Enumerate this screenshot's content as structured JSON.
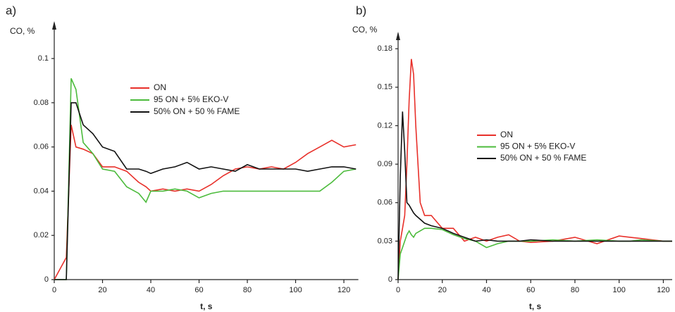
{
  "chart_data": [
    {
      "type": "line",
      "panel_label": "a)",
      "ylabel": "CO, %",
      "xlabel": "t, s",
      "x": [
        0,
        5,
        7,
        9,
        12,
        16,
        20,
        25,
        30,
        35,
        38,
        40,
        45,
        50,
        55,
        60,
        65,
        70,
        75,
        80,
        85,
        90,
        95,
        100,
        105,
        110,
        115,
        120,
        125
      ],
      "series": [
        {
          "name": "ON",
          "color": "#e8302a",
          "values": [
            0,
            0.01,
            0.07,
            0.06,
            0.059,
            0.057,
            0.051,
            0.051,
            0.049,
            0.044,
            0.042,
            0.04,
            0.041,
            0.04,
            0.041,
            0.04,
            0.043,
            0.047,
            0.05,
            0.051,
            0.05,
            0.051,
            0.05,
            0.053,
            0.057,
            0.06,
            0.063,
            0.06,
            0.061
          ]
        },
        {
          "name": "95 ON + 5% EKO-V",
          "color": "#4cbb3c",
          "values": [
            0,
            0,
            0.091,
            0.086,
            0.062,
            0.057,
            0.05,
            0.049,
            0.042,
            0.039,
            0.035,
            0.04,
            0.04,
            0.041,
            0.04,
            0.037,
            0.039,
            0.04,
            0.04,
            0.04,
            0.04,
            0.04,
            0.04,
            0.04,
            0.04,
            0.04,
            0.044,
            0.049,
            0.05
          ]
        },
        {
          "name": "50% ON + 50 % FAME",
          "color": "#111111",
          "values": [
            0,
            0,
            0.08,
            0.08,
            0.07,
            0.066,
            0.06,
            0.058,
            0.05,
            0.05,
            0.049,
            0.048,
            0.05,
            0.051,
            0.053,
            0.05,
            0.051,
            0.05,
            0.049,
            0.052,
            0.05,
            0.05,
            0.05,
            0.05,
            0.049,
            0.05,
            0.051,
            0.051,
            0.05
          ]
        }
      ],
      "xlim": [
        0,
        126
      ],
      "xticks": [
        0,
        20,
        40,
        60,
        80,
        100,
        120
      ],
      "ylim": [
        0,
        0.115
      ],
      "yticks": [
        0,
        0.02,
        0.04,
        0.06,
        0.08,
        0.1
      ]
    },
    {
      "type": "line",
      "panel_label": "b)",
      "ylabel": "CO, %",
      "xlabel": "t, s",
      "x": [
        0,
        1,
        2,
        3,
        4,
        5,
        6,
        7,
        8,
        10,
        12,
        15,
        20,
        25,
        30,
        35,
        40,
        45,
        50,
        55,
        60,
        70,
        80,
        90,
        100,
        105,
        110,
        120,
        124
      ],
      "series": [
        {
          "name": "ON",
          "color": "#e8302a",
          "values": [
            0,
            0.03,
            0.04,
            0.05,
            0.09,
            0.14,
            0.172,
            0.16,
            0.12,
            0.06,
            0.05,
            0.05,
            0.04,
            0.04,
            0.03,
            0.033,
            0.03,
            0.033,
            0.035,
            0.03,
            0.029,
            0.03,
            0.033,
            0.028,
            0.034,
            0.033,
            0.032,
            0.03,
            0.03
          ]
        },
        {
          "name": "95 ON + 5% EKO-V",
          "color": "#4cbb3c",
          "values": [
            0,
            0.02,
            0.025,
            0.03,
            0.035,
            0.038,
            0.035,
            0.033,
            0.036,
            0.038,
            0.04,
            0.04,
            0.039,
            0.035,
            0.032,
            0.03,
            0.025,
            0.028,
            0.03,
            0.03,
            0.03,
            0.031,
            0.03,
            0.031,
            0.03,
            0.03,
            0.031,
            0.03,
            0.03
          ]
        },
        {
          "name": "50% ON + 50 % FAME",
          "color": "#111111",
          "values": [
            0,
            0.08,
            0.131,
            0.1,
            0.06,
            0.058,
            0.055,
            0.052,
            0.05,
            0.047,
            0.044,
            0.042,
            0.04,
            0.036,
            0.033,
            0.03,
            0.031,
            0.03,
            0.03,
            0.03,
            0.031,
            0.03,
            0.03,
            0.03,
            0.03,
            0.03,
            0.03,
            0.03,
            0.03
          ]
        }
      ],
      "xlim": [
        0,
        124
      ],
      "xticks": [
        0,
        20,
        40,
        60,
        80,
        100,
        120
      ],
      "ylim": [
        0,
        0.19
      ],
      "yticks": [
        0,
        0.03,
        0.06,
        0.09,
        0.12,
        0.15,
        0.18
      ]
    }
  ]
}
